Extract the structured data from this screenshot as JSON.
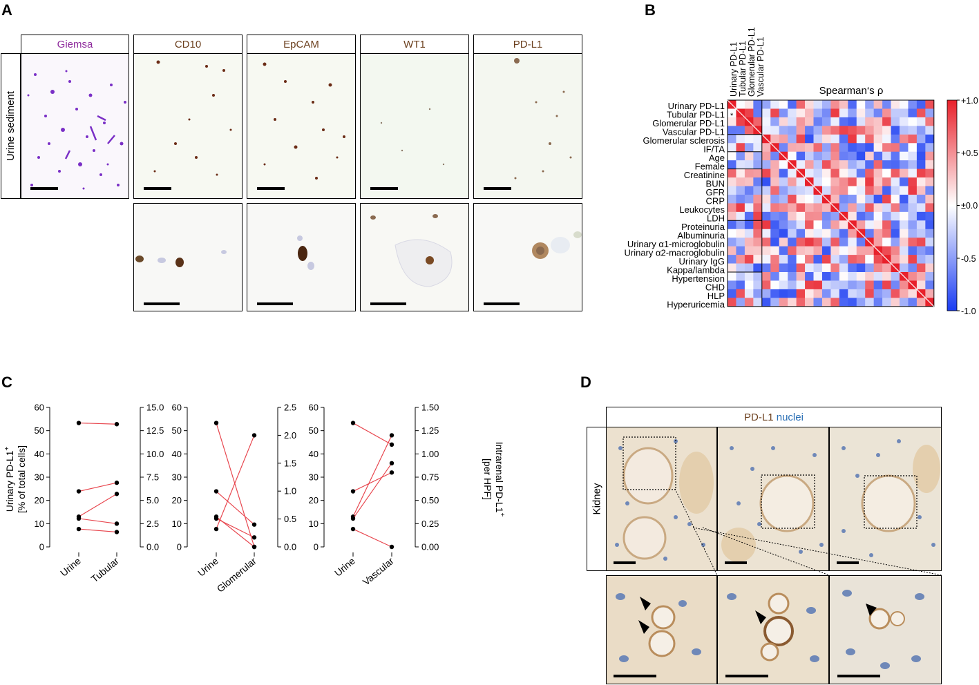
{
  "panel_a": {
    "label": "A",
    "row_label": "Urine sediment",
    "stains": [
      {
        "name": "Giemsa",
        "color": "#8e2a9c"
      },
      {
        "name": "CD10",
        "color": "#6b3f1d"
      },
      {
        "name": "EpCAM",
        "color": "#6b3f1d"
      },
      {
        "name": "WT1",
        "color": "#6b3f1d"
      },
      {
        "name": "PD-L1",
        "color": "#6b3f1d"
      }
    ]
  },
  "panel_b": {
    "label": "B",
    "title": "Spearman‘s ρ",
    "row_labels": [
      "Urinary PD-L1",
      "Tubular PD-L1",
      "Glomerular PD-L1",
      "Vascular PD-L1",
      "Glomerular sclerosis",
      "IF/TA",
      "Age",
      "Female",
      "Creatinine",
      "BUN",
      "GFR",
      "CRP",
      "Leukocytes",
      "LDH",
      "Proteinuria",
      "Albuminuria",
      "Urinary α1-microglobulin",
      "Urinary α2-macroglobulin",
      "Urinary IgG",
      "Kappa/lambda",
      "Hypertension",
      "CHD",
      "HLP",
      "Hyperuricemia"
    ],
    "column_labels": [
      "Urinary PD-L1",
      "Tubular PD-L1",
      "Glomerular PD-L1",
      "Vascular PD-L1"
    ],
    "colorbar_ticks": [
      "+1.0",
      "+0.5",
      "±0.0",
      "-0.5",
      "-1.0"
    ],
    "colorbar_values": [
      1.0,
      0.5,
      0.0,
      -0.5,
      -1.0
    ],
    "colors": {
      "pos": "#e8202a",
      "neg": "#1a3cf2",
      "mid": "#ffffff"
    },
    "significance_marker": "*"
  },
  "panel_c": {
    "label": "C",
    "left_axis_label_line1": "Urinary PD-L1",
    "left_axis_label_sup": "+",
    "left_axis_label_line2": "[% of total cells]",
    "right_axis_label_line1": "Intrarenal PD-L1",
    "right_axis_label_sup": "+",
    "right_axis_label_line2": "[per HPF]",
    "line_color": "#e8474f",
    "chart_data": [
      {
        "type": "line",
        "categories": [
          "Urine",
          "Tubular"
        ],
        "left_ylim": [
          0,
          60
        ],
        "left_ticks": [
          "0",
          "10",
          "20",
          "30",
          "40",
          "50",
          "60"
        ],
        "right_ylim": [
          0,
          15
        ],
        "right_ticks": [
          "0.0",
          "2.5",
          "5.0",
          "7.5",
          "10.0",
          "12.5",
          "15.0"
        ],
        "pairs": [
          [
            53.3,
            13.2
          ],
          [
            23.9,
            6.9
          ],
          [
            13.0,
            5.7
          ],
          [
            12.2,
            2.5
          ],
          [
            7.7,
            1.6
          ]
        ]
      },
      {
        "type": "line",
        "categories": [
          "Urine",
          "Glomerular"
        ],
        "left_ylim": [
          0,
          60
        ],
        "left_ticks": [
          "0",
          "10",
          "20",
          "30",
          "40",
          "50",
          "60"
        ],
        "right_ylim": [
          0,
          2.5
        ],
        "right_ticks": [
          "0.0",
          "0.5",
          "1.0",
          "1.5",
          "2.0",
          "2.5"
        ],
        "pairs": [
          [
            53.3,
            0.0
          ],
          [
            23.9,
            0.4
          ],
          [
            13.0,
            0.0
          ],
          [
            12.2,
            0.17
          ],
          [
            7.7,
            2.0
          ]
        ]
      },
      {
        "type": "line",
        "categories": [
          "Urine",
          "Vascular"
        ],
        "left_ylim": [
          0,
          60
        ],
        "left_ticks": [
          "0",
          "10",
          "20",
          "30",
          "40",
          "50",
          "60"
        ],
        "right_ylim": [
          0,
          1.5
        ],
        "right_ticks": [
          "0.00",
          "0.25",
          "0.50",
          "0.75",
          "1.00",
          "1.25",
          "1.50"
        ],
        "pairs": [
          [
            53.3,
            1.1
          ],
          [
            23.9,
            0.8
          ],
          [
            13.0,
            1.2
          ],
          [
            12.2,
            0.9
          ],
          [
            7.7,
            0.0
          ]
        ]
      }
    ]
  },
  "panel_d": {
    "label": "D",
    "header_stain": "PD-L1",
    "header_stain_color": "#6b3f1d",
    "header_nuclei": "nuclei",
    "header_nuclei_color": "#2a6fb5",
    "row_label": "Kidney"
  }
}
